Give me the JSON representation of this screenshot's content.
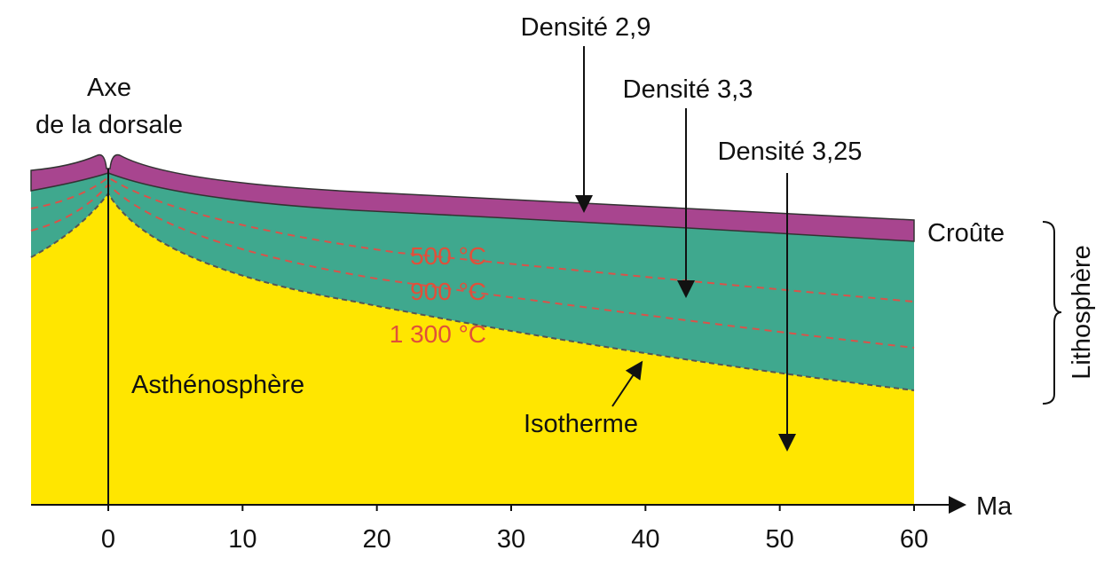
{
  "labels": {
    "axis_top": "Axe",
    "axis_bottom": "de la dorsale",
    "density_crust": "Densité 2,9",
    "density_litho": "Densité 3,3",
    "density_astheno": "Densité 3,25",
    "crust": "Croûte",
    "lithosphere": "Lithosphère",
    "asthenosphere": "Asthénosphère",
    "isotherm": "Isotherme"
  },
  "isotherms": [
    "500 °C",
    "900 °C",
    "1 300 °C"
  ],
  "axis": {
    "unit": "Ma",
    "ticks": [
      0,
      10,
      20,
      30,
      40,
      50,
      60
    ]
  }
}
